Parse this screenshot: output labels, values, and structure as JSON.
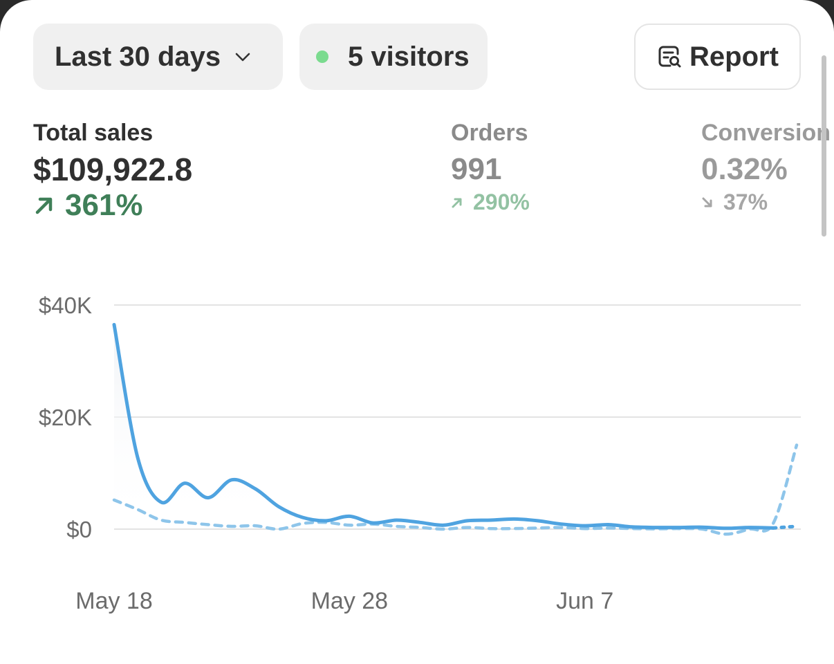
{
  "filters": {
    "range_label": "Last 30 days",
    "visitors_label": "5 visitors",
    "report_label": "Report"
  },
  "icons": {
    "range": "chevron-down-icon",
    "visitors": "live-dot-icon",
    "report": "report-search-icon",
    "up": "arrow-up-right-icon",
    "down": "arrow-down-right-icon"
  },
  "colors": {
    "accent": "#4fa3e0",
    "comparison": "#8ec5ea",
    "positive": "#3f7f58",
    "live": "#7bdb8f"
  },
  "metrics": {
    "total_sales": {
      "label": "Total sales",
      "value": "$109,922.8",
      "change": "361%",
      "direction": "up"
    },
    "orders": {
      "label": "Orders",
      "value": "991",
      "change": "290%",
      "direction": "up"
    },
    "conversion": {
      "label": "Conversion",
      "value": "0.32%",
      "change": "37%",
      "direction": "down"
    }
  },
  "chart_data": {
    "type": "line",
    "ylim": [
      0,
      40000
    ],
    "y_ticks": [
      {
        "value": 40000,
        "label": "$40K"
      },
      {
        "value": 20000,
        "label": "$20K"
      },
      {
        "value": 0,
        "label": "$0"
      }
    ],
    "x_ticks": [
      {
        "day": 0,
        "label": "May 18"
      },
      {
        "day": 10,
        "label": "May 28"
      },
      {
        "day": 20,
        "label": "Jun 7"
      }
    ],
    "series": [
      {
        "style": "solid",
        "values": [
          36500,
          12800,
          4800,
          8200,
          5600,
          8800,
          7200,
          4000,
          2100,
          1500,
          2300,
          1100,
          1600,
          1200,
          700,
          1500,
          1600,
          1800,
          1500,
          900,
          600,
          800,
          400,
          300,
          300,
          350,
          150,
          300,
          200,
          500
        ]
      },
      {
        "style": "dashed",
        "values": [
          5200,
          3500,
          1600,
          1200,
          800,
          500,
          600,
          0,
          1000,
          1200,
          700,
          900,
          500,
          300,
          0,
          300,
          100,
          100,
          200,
          300,
          100,
          200,
          100,
          50,
          100,
          0,
          -900,
          0,
          1000,
          15000
        ]
      }
    ]
  }
}
